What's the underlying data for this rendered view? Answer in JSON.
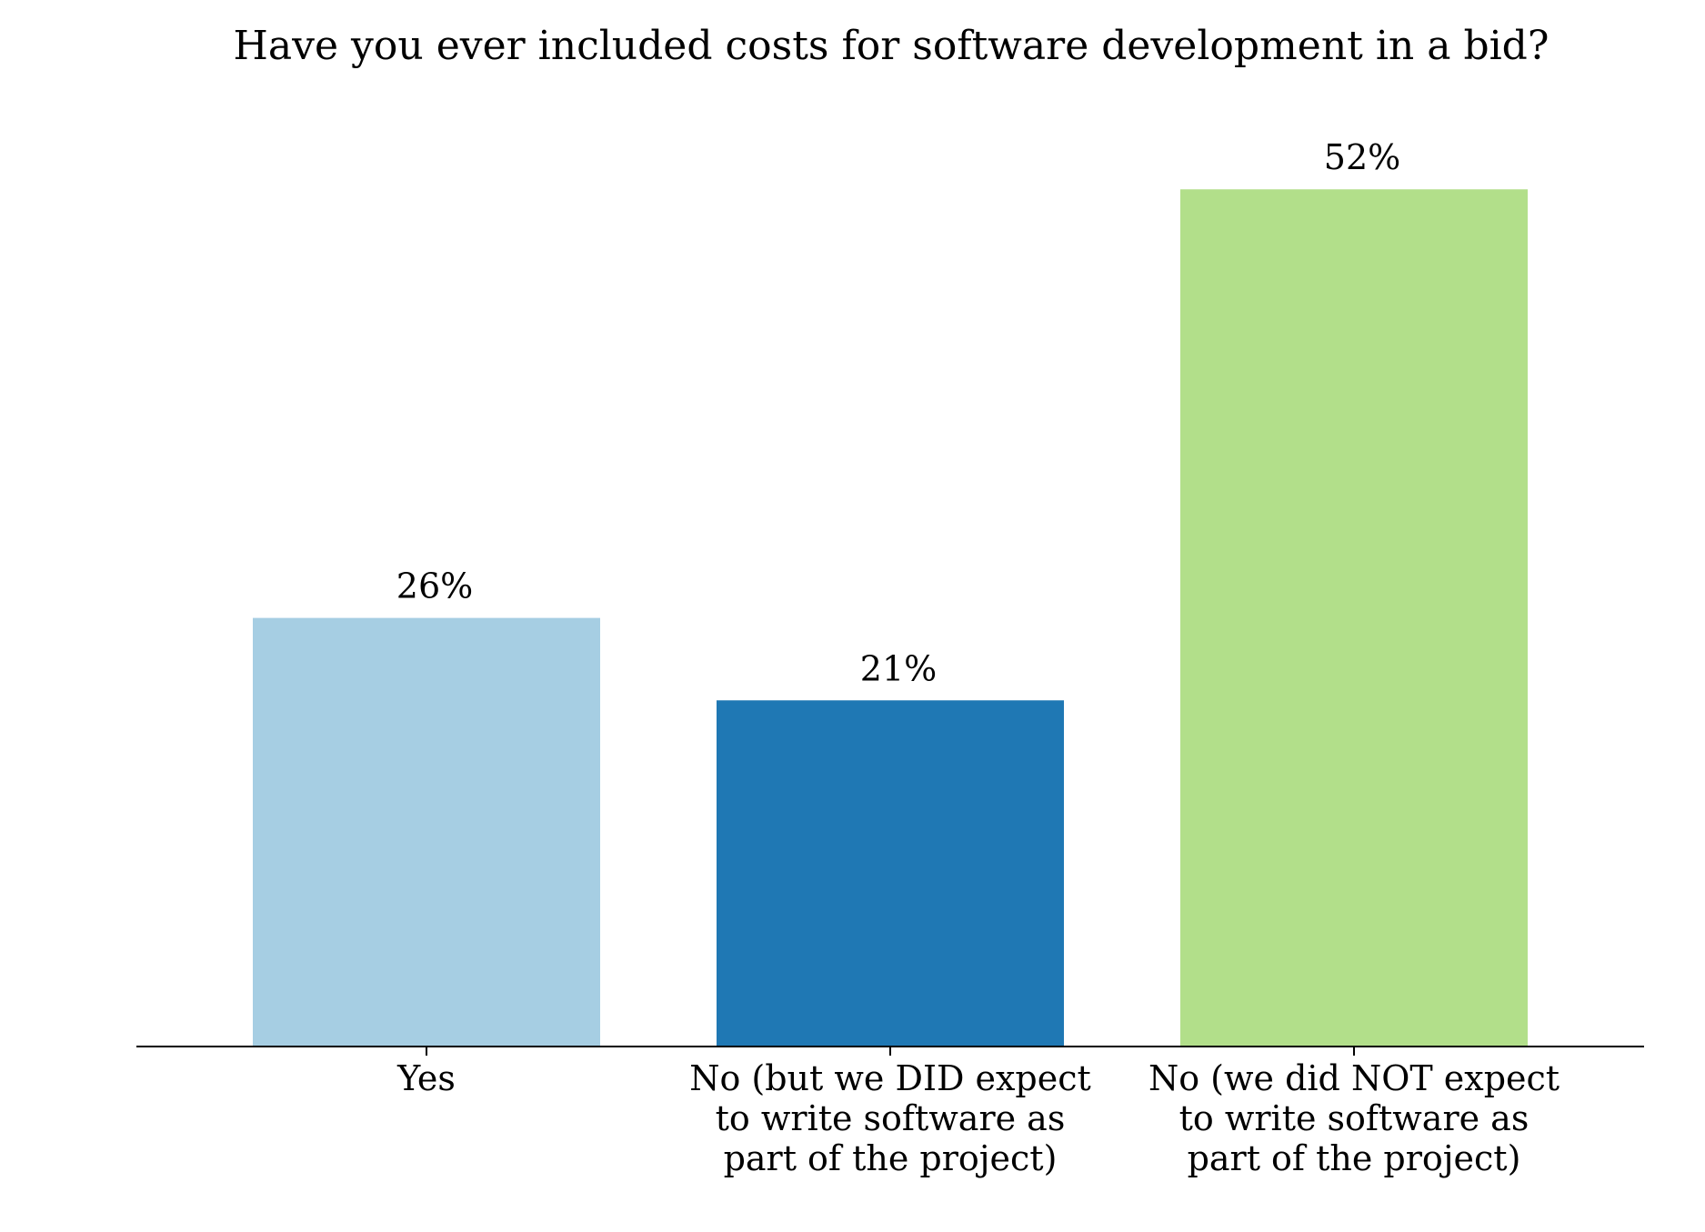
{
  "chart_data": {
    "type": "bar",
    "title": "Have you ever included costs for software development in a bid?",
    "xlabel": "",
    "ylabel": "",
    "ylim": [
      0,
      55
    ],
    "grid": false,
    "categories": [
      [
        "Yes"
      ],
      [
        "No (but we DID expect",
        "to write software as",
        "part of the project)"
      ],
      [
        "No (we did NOT expect",
        "to write software as",
        "part of the project)"
      ]
    ],
    "values": [
      26,
      21,
      52
    ],
    "value_labels": [
      "26%",
      "21%",
      "52%"
    ],
    "colors": [
      "#a6cee3",
      "#1f78b4",
      "#b2df8a"
    ]
  }
}
